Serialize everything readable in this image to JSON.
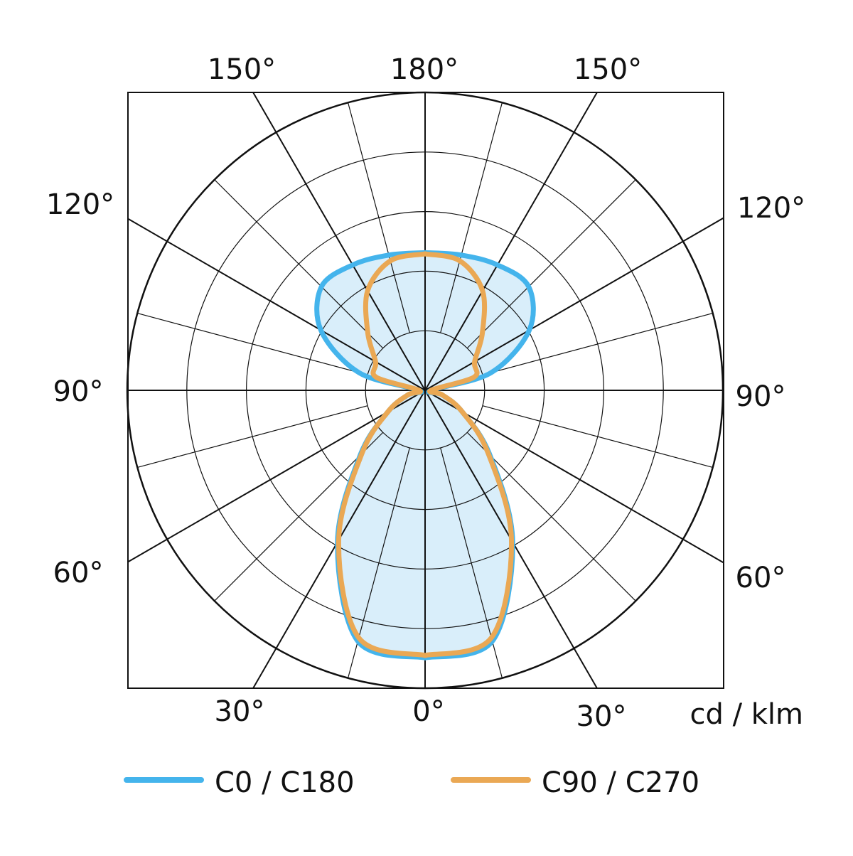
{
  "chart_data": {
    "type": "polar",
    "unit_label": "cd / klm",
    "angles": [
      0,
      15,
      30,
      45,
      60,
      75,
      90,
      105,
      120,
      135,
      150,
      165,
      180
    ],
    "series": [
      {
        "name": "C0 / C180",
        "color": "#44b4ec",
        "fill": "#d9eefa",
        "values": [
          4.49,
          4.36,
          2.94,
          1.54,
          0.72,
          0.3,
          0.1,
          1.15,
          2.02,
          2.46,
          2.43,
          2.35,
          2.31
        ]
      },
      {
        "name": "C90 / C270",
        "color": "#eaa854",
        "values": [
          4.45,
          4.3,
          2.9,
          1.5,
          0.72,
          0.3,
          0.1,
          0.85,
          0.96,
          1.36,
          1.93,
          2.25,
          2.29
        ]
      }
    ],
    "rlim": [
      0,
      5
    ],
    "rticks": [
      1,
      2,
      3,
      4,
      5
    ],
    "theta_ticks": [
      0,
      15,
      30,
      45,
      60,
      75,
      90,
      105,
      120,
      135,
      150,
      165,
      180
    ],
    "angle_labels": [
      {
        "value": 150,
        "label": "150°"
      },
      {
        "value": 180,
        "label": "180°"
      },
      {
        "value": 150,
        "label": "150°"
      },
      {
        "value": 120,
        "label": "120°"
      },
      {
        "value": 120,
        "label": "120°"
      },
      {
        "value": 90,
        "label": "90°"
      },
      {
        "value": 90,
        "label": "90°"
      },
      {
        "value": 60,
        "label": "60°"
      },
      {
        "value": 60,
        "label": "60°"
      },
      {
        "value": 30,
        "label": "30°"
      },
      {
        "value": 0,
        "label": "0°"
      },
      {
        "value": 30,
        "label": "30°"
      }
    ]
  }
}
